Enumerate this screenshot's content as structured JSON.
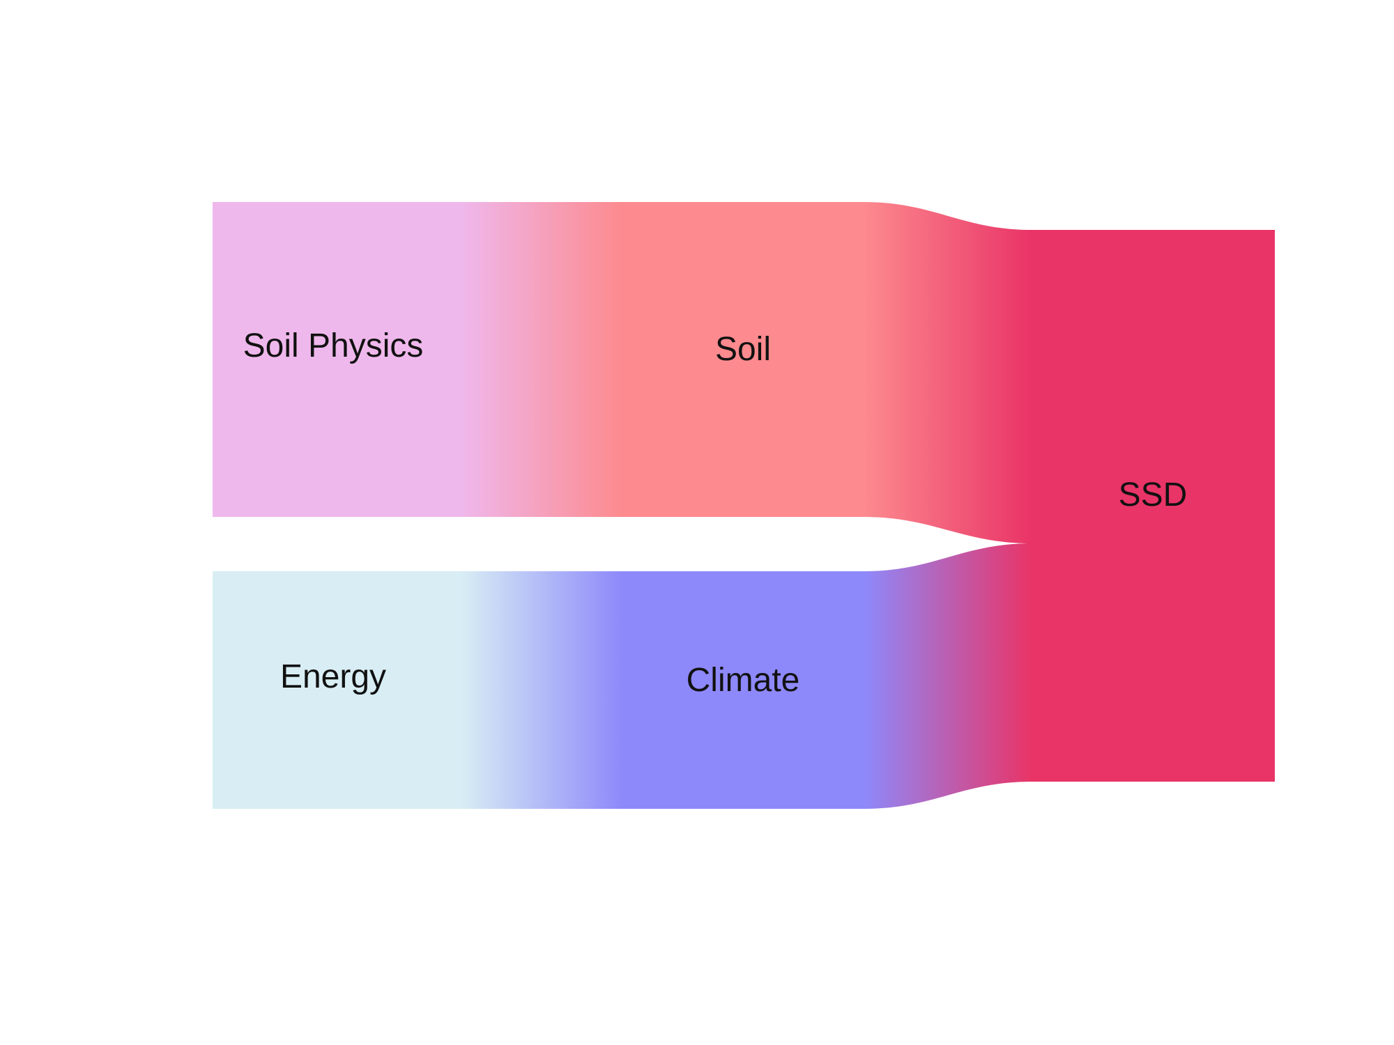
{
  "diagram": {
    "type": "alluvial",
    "stages": [
      {
        "nodes": [
          {
            "id": "soil-physics",
            "label": "Soil Physics",
            "color": "#EFB8EC",
            "value": 55
          },
          {
            "id": "energy",
            "label": "Energy",
            "color": "#D8EEF4",
            "value": 45
          }
        ]
      },
      {
        "nodes": [
          {
            "id": "soil",
            "label": "Soil",
            "color": "#FC8A8E",
            "value": 55
          },
          {
            "id": "climate",
            "label": "Climate",
            "color": "#8E89FA",
            "value": 45
          }
        ]
      },
      {
        "nodes": [
          {
            "id": "ssd",
            "label": "SSD",
            "color": "#E93467",
            "value": 100
          }
        ]
      }
    ],
    "flows": [
      {
        "from": "soil-physics",
        "to": "soil",
        "value": 55
      },
      {
        "from": "energy",
        "to": "climate",
        "value": 45
      },
      {
        "from": "soil",
        "to": "ssd",
        "value": 55
      },
      {
        "from": "climate",
        "to": "ssd",
        "value": 45
      }
    ]
  }
}
